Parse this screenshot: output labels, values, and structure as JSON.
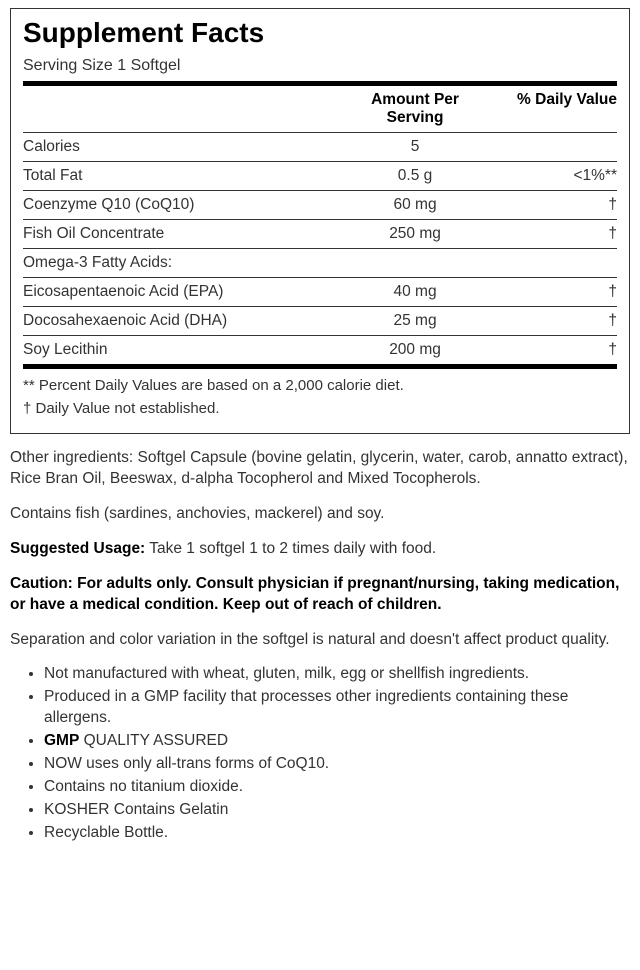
{
  "panel": {
    "title": "Supplement Facts",
    "serving_size": "Serving Size 1 Softgel",
    "header_amount": "Amount Per Serving",
    "header_dv": "% Daily Value",
    "rows": [
      {
        "name": "Calories",
        "amount": "5",
        "dv": "",
        "indent": 0
      },
      {
        "name": "Total Fat",
        "amount": "0.5 g",
        "dv": "<1%**",
        "indent": 0
      },
      {
        "name": "Coenzyme Q10 (CoQ10)",
        "amount": "60 mg",
        "dv": "†",
        "indent": 0
      },
      {
        "name": "Fish Oil Concentrate",
        "amount": "250 mg",
        "dv": "†",
        "indent": 0
      },
      {
        "name": "Omega-3 Fatty Acids:",
        "amount": "",
        "dv": "",
        "indent": 1
      },
      {
        "name": "Eicosapentaenoic Acid (EPA)",
        "amount": "40 mg",
        "dv": "†",
        "indent": 2
      },
      {
        "name": "Docosahexaenoic Acid (DHA)",
        "amount": "25 mg",
        "dv": "†",
        "indent": 2
      },
      {
        "name": "Soy Lecithin",
        "amount": "200 mg",
        "dv": "†",
        "indent": 0
      }
    ],
    "footnote1": "** Percent Daily Values are based on a 2,000 calorie diet.",
    "footnote2": "† Daily Value not established."
  },
  "body": {
    "other_ingredients": "Other ingredients: Softgel Capsule (bovine gelatin, glycerin, water, carob, annatto extract), Rice Bran Oil, Beeswax, d-alpha Tocopherol and Mixed Tocopherols.",
    "contains": "Contains fish (sardines, anchovies, mackerel) and soy.",
    "suggested_label": "Suggested Usage:",
    "suggested_text": " Take 1 softgel 1 to 2 times daily with food.",
    "caution_label": "Caution: For adults only. Consult physician if pregnant/nursing, taking medication, or have a medical condition. Keep out of reach of children.",
    "separation": "Separation and color variation in the softgel is natural and doesn't affect product quality.",
    "bullets": [
      {
        "pre": "",
        "bold": "",
        "post": "Not manufactured with wheat, gluten, milk, egg or shellfish ingredients."
      },
      {
        "pre": "",
        "bold": "",
        "post": "Produced in a GMP facility that processes other ingredients containing these allergens."
      },
      {
        "pre": "",
        "bold": "GMP",
        "post": " QUALITY ASSURED"
      },
      {
        "pre": "",
        "bold": "",
        "post": "NOW uses only all-trans forms of CoQ10."
      },
      {
        "pre": "",
        "bold": "",
        "post": "Contains no titanium dioxide."
      },
      {
        "pre": "",
        "bold": "",
        "post": "KOSHER Contains Gelatin"
      },
      {
        "pre": "",
        "bold": "",
        "post": "Recyclable Bottle."
      }
    ]
  }
}
